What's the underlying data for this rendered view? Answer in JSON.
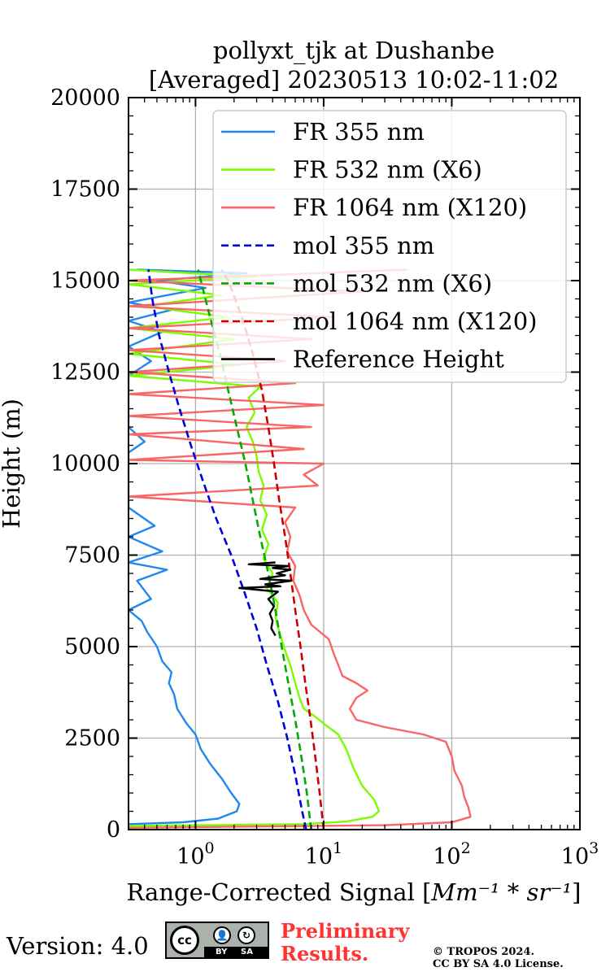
{
  "chart_data": {
    "type": "line",
    "title": [
      "pollyxt_tjk at Dushanbe",
      "[Averaged] 20230513 10:02-11:02"
    ],
    "xlabel": "Range-Corrected Signal [",
    "xlabel_unit": "Mm⁻¹ * sr⁻¹",
    "xlabel_close": "]",
    "ylabel": "Height (m)",
    "xscale": "log",
    "xlim": [
      0.3,
      1000
    ],
    "ylim": [
      0,
      20000
    ],
    "grid": true,
    "legend_position": "top-right",
    "x_ticks": [
      {
        "value": 1,
        "label": "10",
        "exp": "0"
      },
      {
        "value": 10,
        "label": "10",
        "exp": "1"
      },
      {
        "value": 100,
        "label": "10",
        "exp": "2"
      },
      {
        "value": 1000,
        "label": "10",
        "exp": "3"
      }
    ],
    "y_ticks": [
      {
        "value": 0,
        "label": "0"
      },
      {
        "value": 2500,
        "label": "2500"
      },
      {
        "value": 5000,
        "label": "5000"
      },
      {
        "value": 7500,
        "label": "7500"
      },
      {
        "value": 10000,
        "label": "10000"
      },
      {
        "value": 12500,
        "label": "12500"
      },
      {
        "value": 15000,
        "label": "15000"
      },
      {
        "value": 17500,
        "label": "17500"
      },
      {
        "value": 20000,
        "label": "20000"
      }
    ],
    "series": [
      {
        "name": "FR 355 nm",
        "color": "#1f88ee",
        "style": "solid",
        "points": [
          [
            0.3,
            150
          ],
          [
            0.8,
            200
          ],
          [
            1.5,
            300
          ],
          [
            2.1,
            500
          ],
          [
            2.2,
            700
          ],
          [
            1.9,
            1000
          ],
          [
            1.6,
            1400
          ],
          [
            1.3,
            1800
          ],
          [
            1.1,
            2200
          ],
          [
            1.0,
            2600
          ],
          [
            0.85,
            2900
          ],
          [
            0.72,
            3300
          ],
          [
            0.68,
            3700
          ],
          [
            0.62,
            4000
          ],
          [
            0.65,
            4300
          ],
          [
            0.55,
            4600
          ],
          [
            0.5,
            5000
          ],
          [
            0.42,
            5400
          ],
          [
            0.38,
            5700
          ],
          [
            0.3,
            6000
          ],
          [
            0.45,
            6300
          ],
          [
            0.35,
            6800
          ],
          [
            0.6,
            7100
          ],
          [
            0.3,
            7300
          ],
          [
            0.55,
            7600
          ],
          [
            0.3,
            8000
          ],
          [
            0.48,
            8300
          ],
          [
            0.3,
            8800
          ],
          [
            0.3,
            9200
          ],
          [
            0.3,
            10300
          ],
          [
            0.4,
            10600
          ],
          [
            0.3,
            11000
          ],
          [
            0.3,
            12400
          ],
          [
            0.45,
            12800
          ],
          [
            0.3,
            13200
          ],
          [
            0.55,
            13600
          ],
          [
            0.3,
            13900
          ],
          [
            0.65,
            14200
          ],
          [
            0.3,
            14400
          ],
          [
            1.2,
            14800
          ],
          [
            0.5,
            15000
          ],
          [
            2.5,
            15200
          ],
          [
            0.35,
            15300
          ]
        ]
      },
      {
        "name": "FR 532 nm (X6)",
        "color": "#7cfc00",
        "style": "solid",
        "points": [
          [
            0.3,
            100
          ],
          [
            7,
            150
          ],
          [
            15,
            220
          ],
          [
            24,
            350
          ],
          [
            27,
            500
          ],
          [
            25,
            800
          ],
          [
            20,
            1200
          ],
          [
            17,
            1700
          ],
          [
            15,
            2200
          ],
          [
            13,
            2600
          ],
          [
            10,
            2900
          ],
          [
            8.5,
            3100
          ],
          [
            7.0,
            3300
          ],
          [
            6.5,
            3600
          ],
          [
            6.0,
            4000
          ],
          [
            5.6,
            4400
          ],
          [
            5.0,
            4900
          ],
          [
            4.6,
            5300
          ],
          [
            4.2,
            5800
          ],
          [
            4.4,
            6200
          ],
          [
            3.6,
            6600
          ],
          [
            4.0,
            7000
          ],
          [
            3.4,
            7400
          ],
          [
            3.7,
            7800
          ],
          [
            3.3,
            8200
          ],
          [
            3.6,
            8600
          ],
          [
            3.2,
            9000
          ],
          [
            3.4,
            9400
          ],
          [
            3.1,
            9800
          ],
          [
            3.0,
            10200
          ],
          [
            2.8,
            10600
          ],
          [
            2.5,
            11000
          ],
          [
            2.9,
            11400
          ],
          [
            2.6,
            11800
          ],
          [
            3.2,
            12100
          ],
          [
            0.3,
            12400
          ],
          [
            2.2,
            12700
          ],
          [
            0.3,
            13000
          ],
          [
            2.0,
            13400
          ],
          [
            0.3,
            13700
          ],
          [
            1.8,
            14000
          ],
          [
            0.4,
            14300
          ],
          [
            1.6,
            14600
          ],
          [
            0.3,
            14900
          ],
          [
            3.0,
            15100
          ],
          [
            0.3,
            15300
          ]
        ]
      },
      {
        "name": "FR 1064 nm (X120)",
        "color": "#f86666",
        "style": "solid",
        "points": [
          [
            0.3,
            50
          ],
          [
            30,
            120
          ],
          [
            100,
            200
          ],
          [
            140,
            350
          ],
          [
            135,
            600
          ],
          [
            125,
            900
          ],
          [
            120,
            1200
          ],
          [
            105,
            1600
          ],
          [
            100,
            2000
          ],
          [
            90,
            2400
          ],
          [
            60,
            2600
          ],
          [
            30,
            2800
          ],
          [
            18,
            3000
          ],
          [
            16,
            3300
          ],
          [
            18,
            3600
          ],
          [
            22,
            3800
          ],
          [
            18,
            4000
          ],
          [
            14,
            4200
          ],
          [
            13,
            4500
          ],
          [
            12,
            4800
          ],
          [
            11,
            5200
          ],
          [
            8,
            5600
          ],
          [
            7,
            6000
          ],
          [
            6.5,
            6400
          ],
          [
            5.8,
            6800
          ],
          [
            6.0,
            7200
          ],
          [
            5.2,
            7600
          ],
          [
            5.5,
            8000
          ],
          [
            5.0,
            8400
          ],
          [
            6.0,
            8800
          ],
          [
            0.3,
            9100
          ],
          [
            9,
            9400
          ],
          [
            7,
            9700
          ],
          [
            10,
            10000
          ],
          [
            0.3,
            10100
          ],
          [
            7,
            10400
          ],
          [
            0.3,
            10800
          ],
          [
            8,
            11000
          ],
          [
            0.3,
            11300
          ],
          [
            10,
            11600
          ],
          [
            0.3,
            11900
          ],
          [
            6,
            12200
          ],
          [
            0.3,
            12500
          ],
          [
            5,
            12800
          ],
          [
            0.3,
            13100
          ],
          [
            8,
            13400
          ],
          [
            0.3,
            13700
          ],
          [
            12,
            14000
          ],
          [
            0.3,
            14300
          ],
          [
            20,
            14700
          ],
          [
            0.3,
            15000
          ],
          [
            45,
            15300
          ]
        ]
      },
      {
        "name": "mol 355 nm",
        "color": "#0000dd",
        "style": "dashed",
        "points": [
          [
            7.3,
            0
          ],
          [
            6.8,
            500
          ],
          [
            6.0,
            1500
          ],
          [
            5.2,
            2500
          ],
          [
            4.4,
            3500
          ],
          [
            3.6,
            4500
          ],
          [
            3.0,
            5500
          ],
          [
            2.4,
            6500
          ],
          [
            1.9,
            7500
          ],
          [
            1.45,
            8500
          ],
          [
            1.15,
            9500
          ],
          [
            0.92,
            10500
          ],
          [
            0.75,
            11500
          ],
          [
            0.62,
            12500
          ],
          [
            0.52,
            13500
          ],
          [
            0.46,
            14500
          ],
          [
            0.43,
            15300
          ]
        ]
      },
      {
        "name": "mol 532 nm (X6)",
        "color": "#00aa00",
        "style": "dashed",
        "points": [
          [
            8.0,
            0
          ],
          [
            7.4,
            1000
          ],
          [
            6.7,
            2000
          ],
          [
            6.0,
            3000
          ],
          [
            5.3,
            4000
          ],
          [
            4.7,
            5000
          ],
          [
            4.2,
            6000
          ],
          [
            3.7,
            7000
          ],
          [
            3.2,
            8000
          ],
          [
            2.8,
            9000
          ],
          [
            2.45,
            10000
          ],
          [
            2.1,
            11000
          ],
          [
            1.8,
            12000
          ],
          [
            1.55,
            13000
          ],
          [
            1.3,
            14000
          ],
          [
            1.1,
            15000
          ],
          [
            1.05,
            15300
          ]
        ]
      },
      {
        "name": "mol 1064 nm (X120)",
        "color": "#cc0000",
        "style": "dashed",
        "points": [
          [
            10.0,
            0
          ],
          [
            9.3,
            1000
          ],
          [
            8.6,
            2000
          ],
          [
            7.9,
            3000
          ],
          [
            7.2,
            4000
          ],
          [
            6.6,
            5000
          ],
          [
            6.0,
            6000
          ],
          [
            5.5,
            7000
          ],
          [
            5.0,
            8000
          ],
          [
            4.5,
            9000
          ],
          [
            4.1,
            10000
          ],
          [
            3.7,
            11000
          ],
          [
            3.3,
            12000
          ],
          [
            2.8,
            13000
          ],
          [
            2.3,
            14000
          ],
          [
            1.8,
            15000
          ],
          [
            1.6,
            15300
          ]
        ]
      },
      {
        "name": "Reference Height",
        "color": "#000000",
        "style": "solid",
        "points": [
          [
            4.2,
            5300
          ],
          [
            3.9,
            5500
          ],
          [
            4.0,
            5700
          ],
          [
            3.8,
            5900
          ],
          [
            4.1,
            6100
          ],
          [
            3.7,
            6300
          ],
          [
            4.4,
            6500
          ],
          [
            2.2,
            6600
          ],
          [
            4.6,
            6650
          ],
          [
            3.5,
            6700
          ],
          [
            5.6,
            6800
          ],
          [
            3.2,
            6850
          ],
          [
            5.0,
            6950
          ],
          [
            4.3,
            7000
          ],
          [
            5.5,
            7100
          ],
          [
            4.0,
            7150
          ],
          [
            5.3,
            7200
          ],
          [
            2.6,
            7250
          ],
          [
            4.2,
            7300
          ]
        ]
      }
    ]
  },
  "footer": {
    "version": "Version: 4.0",
    "cc_label": "cc",
    "cc_by": "BY",
    "cc_sa": "SA",
    "preliminary": [
      "Preliminary",
      "Results."
    ],
    "copyright": [
      "© TROPOS 2024.",
      "CC BY SA 4.0 License."
    ]
  }
}
